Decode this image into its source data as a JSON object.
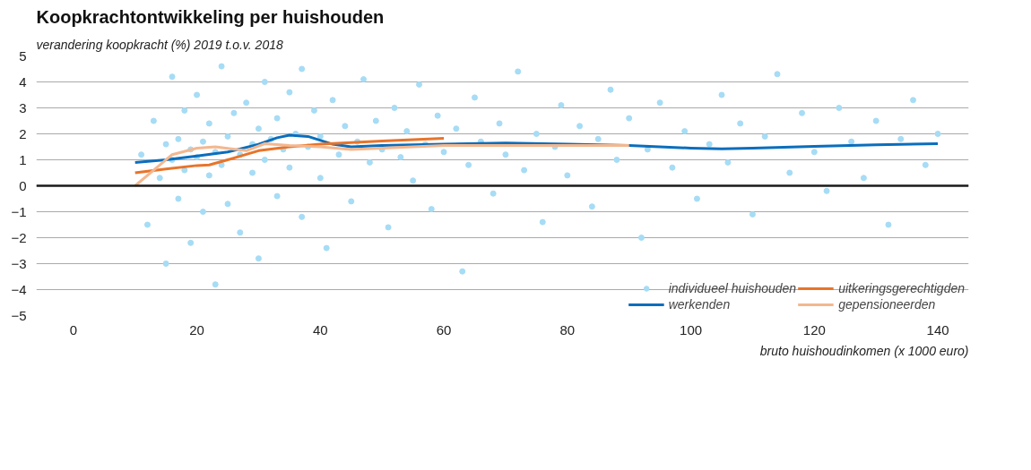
{
  "chart_data": {
    "type": "line",
    "title": "Koopkrachtontwikkeling per huishouden",
    "ylabel": "verandering koopkracht (%) 2019 t.o.v. 2018",
    "xlabel": "bruto huishoudinkomen (x 1000 euro)",
    "xlim": [
      -6,
      145
    ],
    "xticks": [
      0,
      20,
      40,
      60,
      80,
      100,
      120,
      140
    ],
    "ylim": [
      -5,
      5
    ],
    "yticks": [
      -5,
      -4,
      -3,
      -2,
      -1,
      0,
      1,
      2,
      3,
      4,
      5
    ],
    "grid": "y",
    "legend": "bottom right",
    "ref_lines": [
      {
        "axis": "y",
        "value": 0,
        "color": "#1a1a1a"
      }
    ],
    "series": [
      {
        "name": "individueel huishouden",
        "type": "scatter",
        "marker": "circle",
        "color": "#a6dcf5",
        "x": [
          11,
          12,
          13,
          14,
          15,
          15,
          16,
          16,
          17,
          17,
          18,
          18,
          19,
          19,
          20,
          20,
          21,
          21,
          22,
          22,
          23,
          23,
          24,
          24,
          25,
          25,
          26,
          27,
          27,
          28,
          29,
          29,
          30,
          30,
          31,
          31,
          32,
          33,
          33,
          34,
          35,
          35,
          36,
          37,
          37,
          38,
          39,
          40,
          40,
          41,
          42,
          43,
          44,
          45,
          46,
          47,
          48,
          49,
          50,
          51,
          52,
          53,
          54,
          55,
          56,
          57,
          58,
          59,
          60,
          62,
          63,
          64,
          65,
          66,
          68,
          69,
          70,
          72,
          73,
          75,
          76,
          78,
          79,
          80,
          82,
          84,
          85,
          87,
          88,
          90,
          92,
          93,
          95,
          97,
          99,
          101,
          103,
          105,
          106,
          108,
          110,
          112,
          114,
          116,
          118,
          120,
          122,
          124,
          126,
          128,
          130,
          132,
          134,
          136,
          138,
          140
        ],
        "values": [
          1.2,
          -1.5,
          2.5,
          0.3,
          1.6,
          -3,
          4.2,
          1.0,
          -0.5,
          1.8,
          2.9,
          0.6,
          1.4,
          -2.2,
          3.5,
          1.1,
          -1.0,
          1.7,
          0.4,
          2.4,
          -3.8,
          1.3,
          4.6,
          0.8,
          1.9,
          -0.7,
          2.8,
          1.2,
          -1.8,
          3.2,
          0.5,
          1.6,
          2.2,
          -2.8,
          4.0,
          1.0,
          1.8,
          -0.4,
          2.6,
          1.4,
          3.6,
          0.7,
          2.0,
          -1.2,
          4.5,
          1.5,
          2.9,
          0.3,
          1.9,
          -2.4,
          3.3,
          1.2,
          2.3,
          -0.6,
          1.7,
          4.1,
          0.9,
          2.5,
          1.4,
          -1.6,
          3.0,
          1.1,
          2.1,
          0.2,
          3.9,
          1.6,
          -0.9,
          2.7,
          1.3,
          2.2,
          -3.3,
          0.8,
          3.4,
          1.7,
          -0.3,
          2.4,
          1.2,
          4.4,
          0.6,
          2.0,
          -1.4,
          1.5,
          3.1,
          0.4,
          2.3,
          -0.8,
          1.8,
          3.7,
          1.0,
          2.6,
          -2.0,
          1.4,
          3.2,
          0.7,
          2.1,
          -0.5,
          1.6,
          3.5,
          0.9,
          2.4,
          -1.1,
          1.9,
          4.3,
          0.5,
          2.8,
          1.3,
          -0.2,
          3.0,
          1.7,
          0.3,
          2.5,
          -1.5,
          1.8,
          3.3,
          0.8,
          2.0
        ]
      },
      {
        "name": "werkenden",
        "color": "#0a6ebd",
        "x": [
          10,
          15,
          20,
          25,
          30,
          33,
          35,
          38,
          42,
          45,
          50,
          60,
          70,
          80,
          90,
          100,
          105,
          110,
          120,
          130,
          140
        ],
        "values": [
          0.9,
          1.0,
          1.15,
          1.3,
          1.6,
          1.85,
          1.95,
          1.9,
          1.6,
          1.5,
          1.55,
          1.6,
          1.65,
          1.6,
          1.55,
          1.45,
          1.42,
          1.45,
          1.52,
          1.58,
          1.62
        ]
      },
      {
        "name": "uitkeringsgerechtigden",
        "color": "#e8742a",
        "x": [
          10,
          15,
          20,
          22,
          25,
          30,
          35,
          40,
          50,
          60
        ],
        "values": [
          0.5,
          0.65,
          0.78,
          0.8,
          1.0,
          1.35,
          1.5,
          1.6,
          1.72,
          1.83
        ]
      },
      {
        "name": "gepensioneerden",
        "color": "#f3b78f",
        "x": [
          10,
          13,
          16,
          20,
          23,
          28,
          31,
          35,
          40,
          45,
          50,
          55,
          60,
          70,
          80,
          90
        ],
        "values": [
          0.0,
          0.6,
          1.2,
          1.45,
          1.5,
          1.35,
          1.62,
          1.55,
          1.5,
          1.4,
          1.45,
          1.5,
          1.55,
          1.55,
          1.55,
          1.55
        ]
      }
    ]
  }
}
